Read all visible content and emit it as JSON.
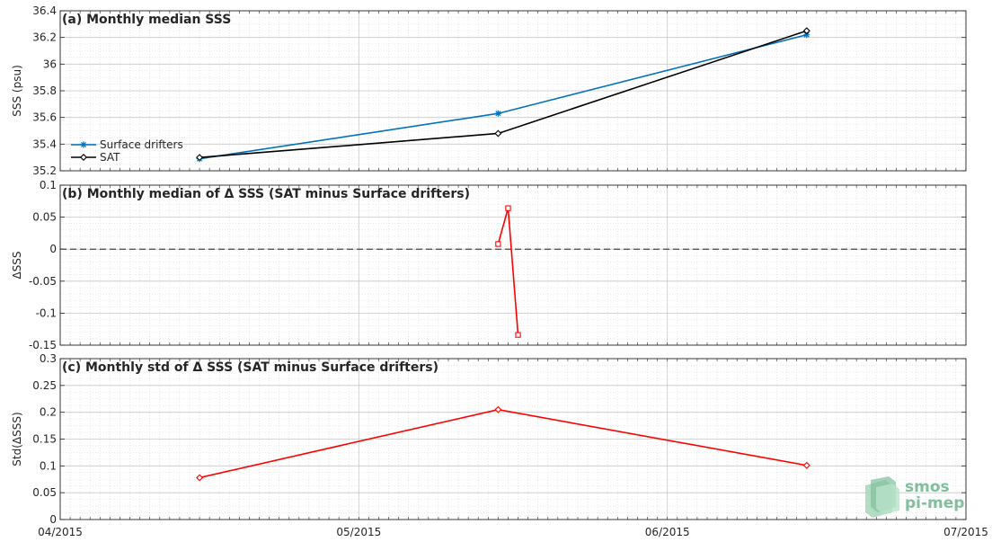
{
  "chart_data": [
    {
      "type": "line",
      "title": "(a) Monthly median SSS",
      "xlabel": "",
      "ylabel": "SSS (psu)",
      "ylim": [
        35.2,
        36.4
      ],
      "yticks": [
        "35.2",
        "35.4",
        "35.6",
        "35.8",
        "36",
        "36.2",
        "36.4"
      ],
      "grid": true,
      "legend": "left",
      "series": [
        {
          "name": "Surface drifters",
          "color": "#0072bd",
          "marker": "star",
          "x": [
            "2015-04-15",
            "2015-05-15",
            "2015-06-15"
          ],
          "values": [
            35.29,
            35.63,
            36.22
          ]
        },
        {
          "name": "SAT",
          "color": "#000000",
          "marker": "diamond",
          "x": [
            "2015-04-15",
            "2015-05-15",
            "2015-06-15"
          ],
          "values": [
            35.3,
            35.48,
            36.25
          ]
        }
      ]
    },
    {
      "type": "line",
      "title": "(b) Monthly median of Δ SSS (SAT minus Surface drifters)",
      "xlabel": "",
      "ylabel": "ΔSSS",
      "ylim": [
        -0.15,
        0.1
      ],
      "yticks": [
        "-0.15",
        "-0.1",
        "-0.05",
        "0",
        "0.05",
        "0.1"
      ],
      "grid": true,
      "zero_line": true,
      "series": [
        {
          "color": "#ff0000",
          "marker": "square",
          "x": [
            "2015-05-15",
            "2015-05-16",
            "2015-05-17"
          ],
          "values": [
            0.008,
            0.064,
            -0.134
          ]
        }
      ]
    },
    {
      "type": "line",
      "title": "(c) Monthly std of Δ SSS (SAT minus Surface drifters)",
      "xlabel": "",
      "ylabel": "Std(ΔSSS)",
      "ylim": [
        0,
        0.3
      ],
      "yticks": [
        "0",
        "0.05",
        "0.1",
        "0.15",
        "0.2",
        "0.25",
        "0.3"
      ],
      "grid": true,
      "series": [
        {
          "color": "#ff0000",
          "marker": "diamond",
          "x": [
            "2015-04-15",
            "2015-05-15",
            "2015-06-15"
          ],
          "values": [
            0.078,
            0.205,
            0.101
          ]
        }
      ]
    }
  ],
  "x_axis": {
    "range": [
      "2015-04-01",
      "2015-07-01"
    ],
    "ticks": [
      {
        "date": "2015-04-01",
        "label": "04/2015"
      },
      {
        "date": "2015-05-01",
        "label": "05/2015"
      },
      {
        "date": "2015-06-01",
        "label": "06/2015"
      },
      {
        "date": "2015-07-01",
        "label": "07/2015"
      }
    ]
  },
  "logo": {
    "line1": "smos",
    "line2": "pi-mep",
    "color": "#7fbf9c"
  }
}
